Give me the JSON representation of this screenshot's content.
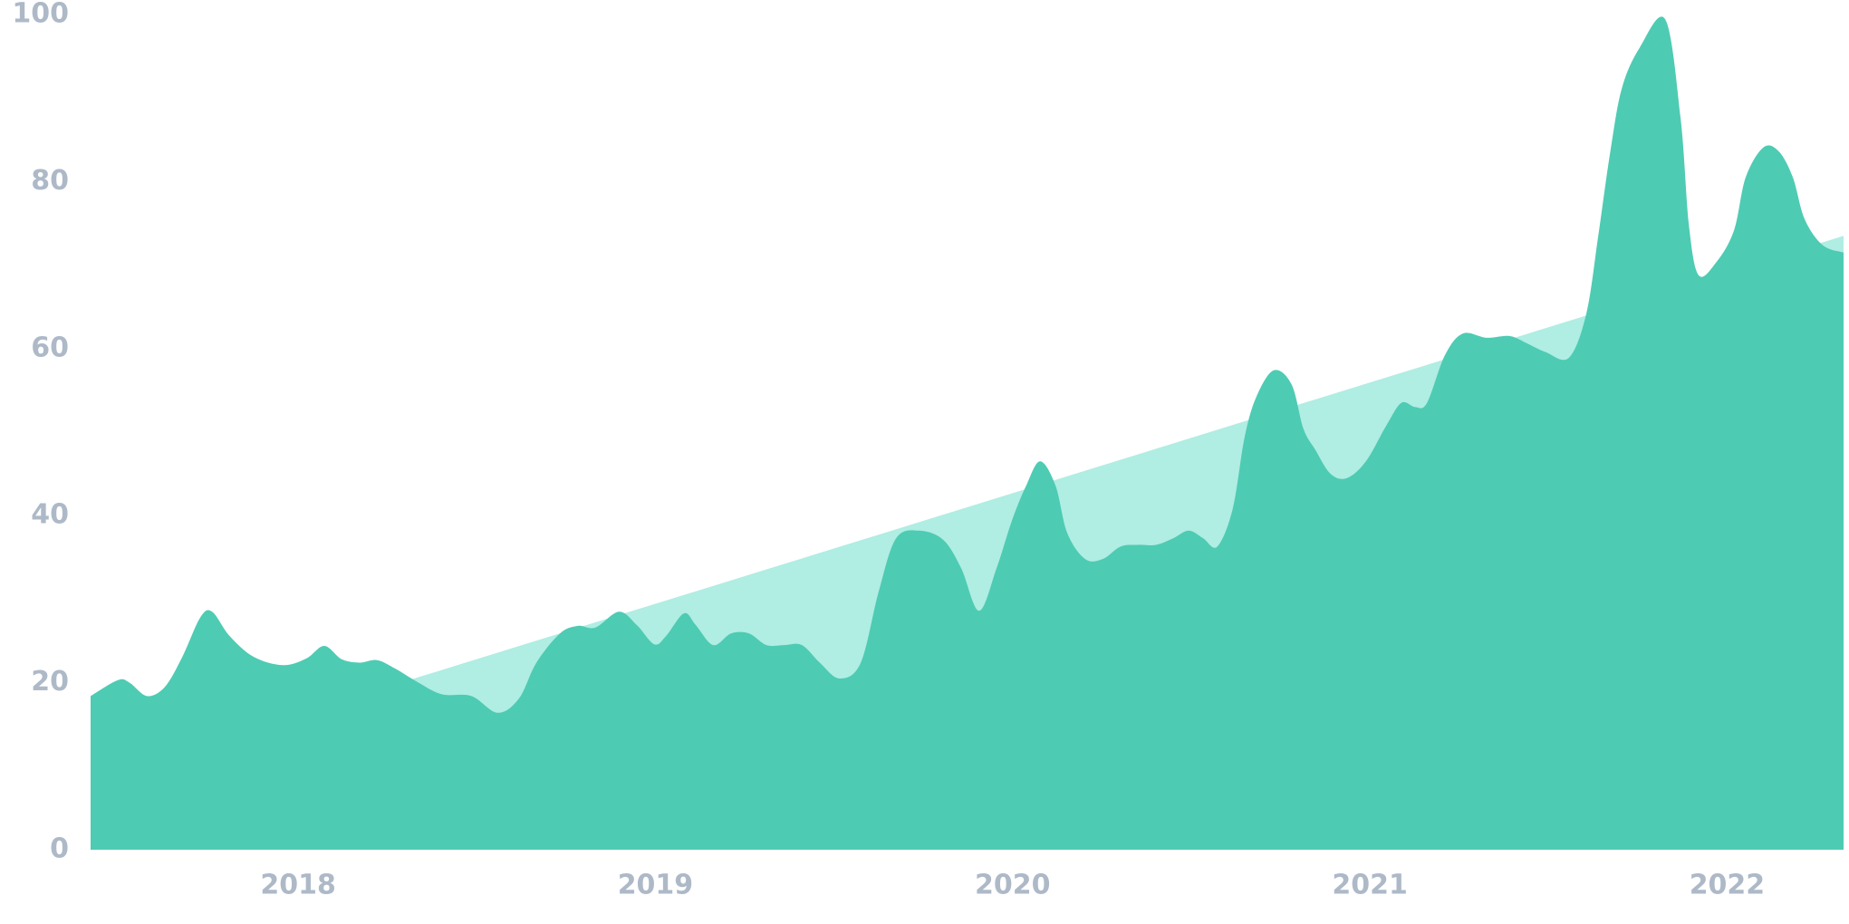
{
  "chart_data": {
    "type": "area",
    "xlim": [
      2017.419,
      2022.326
    ],
    "xticks": [
      2018,
      2019,
      2020,
      2021,
      2022
    ],
    "ylim": [
      0,
      100
    ],
    "yticks": [
      0,
      20,
      40,
      60,
      80,
      100
    ],
    "series": [
      {
        "color": "#b0ede3",
        "x": [
          2017.419,
          2022.326
        ],
        "values": [
          8.5,
          73.5
        ]
      },
      {
        "color": "#4ecbb3",
        "x": [
          2017.419,
          2017.495,
          2017.528,
          2017.577,
          2017.627,
          2017.676,
          2017.726,
          2017.759,
          2017.808,
          2017.875,
          2017.957,
          2018.023,
          2018.073,
          2018.122,
          2018.172,
          2018.221,
          2018.271,
          2018.337,
          2018.403,
          2018.485,
          2018.558,
          2018.618,
          2018.667,
          2018.733,
          2018.783,
          2018.832,
          2018.898,
          2018.948,
          2018.997,
          2019.03,
          2019.08,
          2019.113,
          2019.162,
          2019.212,
          2019.262,
          2019.311,
          2019.361,
          2019.41,
          2019.46,
          2019.516,
          2019.575,
          2019.625,
          2019.674,
          2019.74,
          2019.806,
          2019.856,
          2019.906,
          2019.955,
          2019.998,
          2020.038,
          2020.077,
          2020.12,
          2020.153,
          2020.203,
          2020.252,
          2020.302,
          2020.351,
          2020.401,
          2020.45,
          2020.493,
          2020.533,
          2020.573,
          2020.616,
          2020.649,
          2020.682,
          2020.731,
          2020.781,
          2020.814,
          2020.847,
          2020.89,
          2020.936,
          2020.989,
          2021.045,
          2021.088,
          2021.127,
          2021.16,
          2021.21,
          2021.26,
          2021.326,
          2021.392,
          2021.441,
          2021.491,
          2021.557,
          2021.606,
          2021.639,
          2021.672,
          2021.705,
          2021.755,
          2021.827,
          2021.87,
          2021.893,
          2021.92,
          2021.969,
          2022.019,
          2022.052,
          2022.102,
          2022.145,
          2022.184,
          2022.217,
          2022.267,
          2022.326
        ],
        "values": [
          18.4,
          20.3,
          20.0,
          18.4,
          19.5,
          23.1,
          27.8,
          28.5,
          25.6,
          23.1,
          22.1,
          22.9,
          24.4,
          22.8,
          22.4,
          22.7,
          21.7,
          20.0,
          18.6,
          18.4,
          16.4,
          18.1,
          22.4,
          25.9,
          26.8,
          26.6,
          28.5,
          26.9,
          24.6,
          25.6,
          28.3,
          26.9,
          24.5,
          25.9,
          25.9,
          24.5,
          24.5,
          24.5,
          22.4,
          20.5,
          22.4,
          30.9,
          37.3,
          38.2,
          37.1,
          33.7,
          28.6,
          33.7,
          39.4,
          43.6,
          46.5,
          43.6,
          37.9,
          34.8,
          34.8,
          36.3,
          36.5,
          36.5,
          37.3,
          38.2,
          37.3,
          36.3,
          40.8,
          49.3,
          54.2,
          57.4,
          55.7,
          50.4,
          47.9,
          45.0,
          44.5,
          46.5,
          50.7,
          53.5,
          53.0,
          53.5,
          59.2,
          61.8,
          61.3,
          61.5,
          60.6,
          59.6,
          58.9,
          64.2,
          73.4,
          83.3,
          91.1,
          96.0,
          99.4,
          87.5,
          74.8,
          68.8,
          70.3,
          74.1,
          80.5,
          84.1,
          83.6,
          80.5,
          75.5,
          72.4,
          71.5
        ]
      }
    ]
  }
}
